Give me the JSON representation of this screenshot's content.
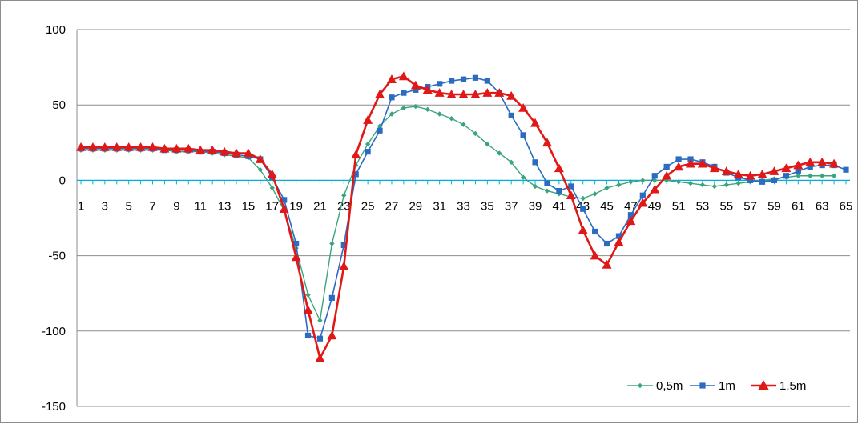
{
  "chart_data": {
    "type": "line",
    "title": "",
    "xlabel": "",
    "ylabel": "",
    "ylim": [
      -150,
      100
    ],
    "ytick_step": 50,
    "grid": "horizontal",
    "legend_position": "bottom-right",
    "x_tick_labels": [
      "1",
      "3",
      "5",
      "7",
      "9",
      "11",
      "13",
      "15",
      "17",
      "19",
      "21",
      "23",
      "25",
      "27",
      "29",
      "31",
      "33",
      "35",
      "37",
      "39",
      "41",
      "43",
      "45",
      "47",
      "49",
      "51",
      "53",
      "55",
      "57",
      "59",
      "61",
      "63",
      "65"
    ],
    "y_tick_labels": [
      "100",
      "50",
      "0",
      "-50",
      "-100",
      "-150"
    ],
    "series": [
      {
        "name": "0,5m",
        "color": "#3aa57c",
        "marker": "diamond",
        "x": [
          1,
          2,
          3,
          4,
          5,
          6,
          7,
          8,
          9,
          10,
          11,
          12,
          13,
          14,
          15,
          16,
          17,
          18,
          19,
          20,
          21,
          22,
          23,
          24,
          25,
          26,
          27,
          28,
          29,
          30,
          31,
          32,
          33,
          34,
          35,
          36,
          37,
          38,
          39,
          40,
          41,
          42,
          43,
          44,
          45,
          46,
          47,
          48,
          49,
          50,
          51,
          52,
          53,
          54,
          55,
          56,
          57,
          58,
          59,
          60,
          61,
          62,
          63,
          64
        ],
        "values": [
          20,
          20,
          20,
          20,
          20,
          20,
          20,
          20,
          19,
          19,
          19,
          18,
          17,
          16,
          15,
          7,
          -5,
          -20,
          -45,
          -76,
          -93,
          -42,
          -10,
          10,
          24,
          36,
          44,
          48,
          49,
          47,
          44,
          41,
          37,
          31,
          24,
          18,
          12,
          2,
          -4,
          -7,
          -9,
          -11,
          -12,
          -9,
          -5,
          -3,
          -1,
          0,
          0,
          0,
          -1,
          -2,
          -3,
          -4,
          -3,
          -2,
          -1,
          0,
          1,
          2,
          3,
          3,
          3,
          3
        ]
      },
      {
        "name": "1m",
        "color": "#2b6bc0",
        "marker": "square",
        "x": [
          1,
          2,
          3,
          4,
          5,
          6,
          7,
          8,
          9,
          10,
          11,
          12,
          13,
          14,
          15,
          16,
          17,
          18,
          19,
          20,
          21,
          22,
          23,
          24,
          25,
          26,
          27,
          28,
          29,
          30,
          31,
          32,
          33,
          34,
          35,
          36,
          37,
          38,
          39,
          40,
          41,
          42,
          43,
          44,
          45,
          46,
          47,
          48,
          49,
          50,
          51,
          52,
          53,
          54,
          55,
          56,
          57,
          58,
          59,
          60,
          61,
          62,
          63,
          64,
          65
        ],
        "values": [
          21,
          21,
          21,
          21,
          21,
          21,
          21,
          20,
          20,
          20,
          19,
          19,
          18,
          17,
          16,
          14,
          2,
          -13,
          -42,
          -103,
          -105,
          -78,
          -43,
          4,
          19,
          33,
          55,
          58,
          60,
          62,
          64,
          66,
          67,
          68,
          66,
          58,
          43,
          30,
          12,
          -2,
          -7,
          -4,
          -19,
          -34,
          -42,
          -37,
          -23,
          -10,
          3,
          9,
          14,
          14,
          12,
          9,
          5,
          2,
          0,
          -1,
          0,
          3,
          6,
          9,
          10,
          10,
          7
        ]
      },
      {
        "name": "1,5m",
        "color": "#e01818",
        "marker": "triangle",
        "x": [
          1,
          2,
          3,
          4,
          5,
          6,
          7,
          8,
          9,
          10,
          11,
          12,
          13,
          14,
          15,
          16,
          17,
          18,
          19,
          20,
          21,
          22,
          23,
          24,
          25,
          26,
          27,
          28,
          29,
          30,
          31,
          32,
          33,
          34,
          35,
          36,
          37,
          38,
          39,
          40,
          41,
          42,
          43,
          44,
          45,
          46,
          47,
          48,
          49,
          50,
          51,
          52,
          53,
          54,
          55,
          56,
          57,
          58,
          59,
          60,
          61,
          62,
          63,
          64
        ],
        "values": [
          22,
          22,
          22,
          22,
          22,
          22,
          22,
          21,
          21,
          21,
          20,
          20,
          19,
          18,
          18,
          14,
          4,
          -19,
          -51,
          -86,
          -118,
          -103,
          -57,
          17,
          40,
          57,
          67,
          69,
          63,
          60,
          58,
          57,
          57,
          57,
          58,
          58,
          56,
          48,
          38,
          25,
          8,
          -10,
          -33,
          -50,
          -56,
          -41,
          -27,
          -15,
          -6,
          3,
          9,
          11,
          11,
          8,
          6,
          4,
          3,
          4,
          6,
          8,
          10,
          12,
          12,
          11
        ]
      }
    ]
  }
}
